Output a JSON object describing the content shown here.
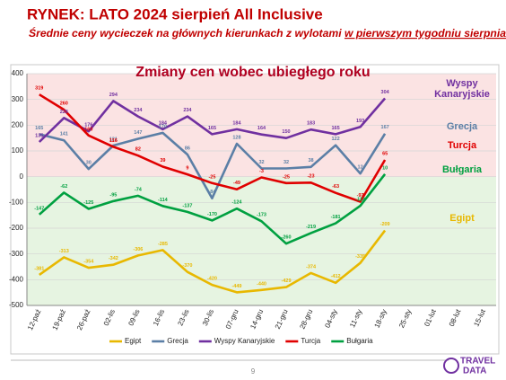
{
  "chart_data": {
    "type": "line",
    "title": "RYNEK: LATO 2024 sierpień All Inclusive",
    "subtitle": [
      "Średnie ceny wycieczek na głównych kierunkach z wylotami ",
      "w pierwszym tygodniu sierpnia"
    ],
    "chart_title": "Zmiany cen wobec ubiegłego roku",
    "categories": [
      "12-paź",
      "19-paź",
      "26-paź",
      "02-lis",
      "09-lis",
      "16-lis",
      "23-lis",
      "30-lis",
      "07-gru",
      "14-gru",
      "21-gru",
      "28-gru",
      "04-sty",
      "11-sty",
      "18-sty",
      "25-sty",
      "01-lut",
      "08-lut",
      "15-lut"
    ],
    "series": [
      {
        "name": "Egipt",
        "color": "#e8b800",
        "values": [
          -381,
          -313,
          -354,
          -342,
          -306,
          -285,
          -370,
          -420,
          -449,
          -440,
          -429,
          -374,
          -412,
          -335,
          -209,
          null,
          null,
          null,
          null
        ]
      },
      {
        "name": "Grecja",
        "color": "#5b7fa6",
        "values": [
          165,
          141,
          30,
          121,
          147,
          170,
          86,
          -84,
          128,
          32,
          32,
          38,
          122,
          12,
          167,
          null,
          null,
          null,
          null
        ]
      },
      {
        "name": "Wyspy Kanaryjskie",
        "color": "#7030a0",
        "values": [
          135,
          228,
          176,
          294,
          234,
          184,
          234,
          165,
          184,
          164,
          150,
          183,
          165,
          193,
          304,
          null,
          null,
          null,
          null
        ]
      },
      {
        "name": "Turcja",
        "color": "#e00000",
        "values": [
          319,
          260,
          160,
          116,
          82,
          39,
          9,
          -25,
          -49,
          -3,
          -25,
          -23,
          -63,
          -97,
          65,
          null,
          null,
          null,
          null
        ]
      },
      {
        "name": "Bułgaria",
        "color": "#00a040",
        "values": [
          -147,
          -62,
          -125,
          -95,
          -74,
          -114,
          -137,
          -170,
          -124,
          -173,
          -260,
          -219,
          -181,
          -113,
          10,
          null,
          null,
          null,
          null
        ]
      }
    ],
    "annotations": [
      {
        "text": "Wyspy",
        "color": "#7030a0"
      },
      {
        "text": "Kanaryjskie",
        "color": "#7030a0"
      },
      {
        "text": "Grecja",
        "color": "#5b7fa6"
      },
      {
        "text": "Turcja",
        "color": "#e00000"
      },
      {
        "text": "Bułgaria",
        "color": "#00a040"
      },
      {
        "text": "Egipt",
        "color": "#e8b800"
      }
    ],
    "ylim": [
      -500,
      400
    ],
    "yticks": [
      -500,
      -400,
      -300,
      -200,
      -100,
      0,
      100,
      200,
      300,
      400
    ],
    "grid": true,
    "legend": "bottom",
    "page_number": "9",
    "logo": [
      "TRAVEL",
      "DATA"
    ]
  }
}
